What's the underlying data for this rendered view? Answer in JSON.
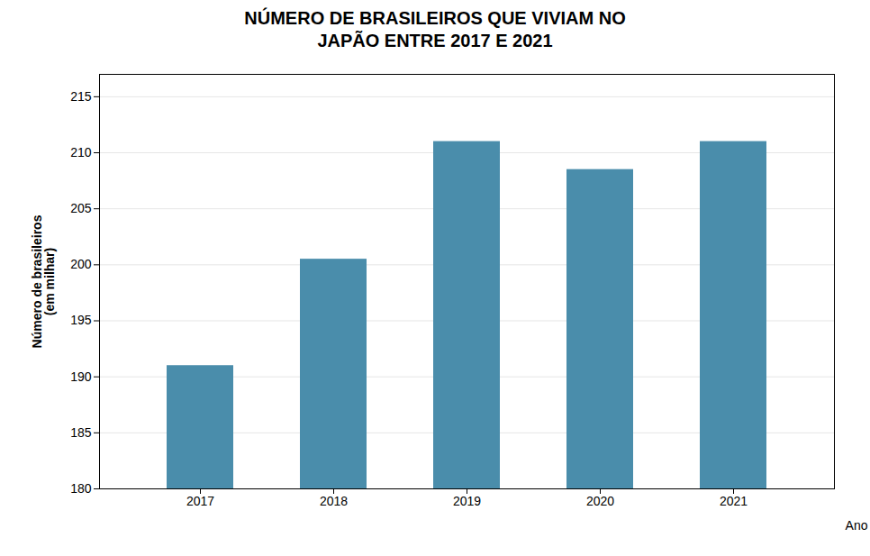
{
  "chart_data": {
    "type": "bar",
    "title": "NÚMERO DE BRASILEIROS QUE VIVIAM NO\nJAPÃO ENTRE 2017 E 2021",
    "xlabel": "Ano",
    "ylabel": "Número de brasileiros\n(em milhar)",
    "categories": [
      "2017",
      "2018",
      "2019",
      "2020",
      "2021"
    ],
    "values": [
      191,
      200.5,
      211,
      208.5,
      211
    ],
    "color": "#4a8dab",
    "ylim": [
      180,
      217
    ],
    "yticks": [
      180,
      185,
      190,
      195,
      200,
      205,
      210,
      215
    ],
    "grid": true
  }
}
